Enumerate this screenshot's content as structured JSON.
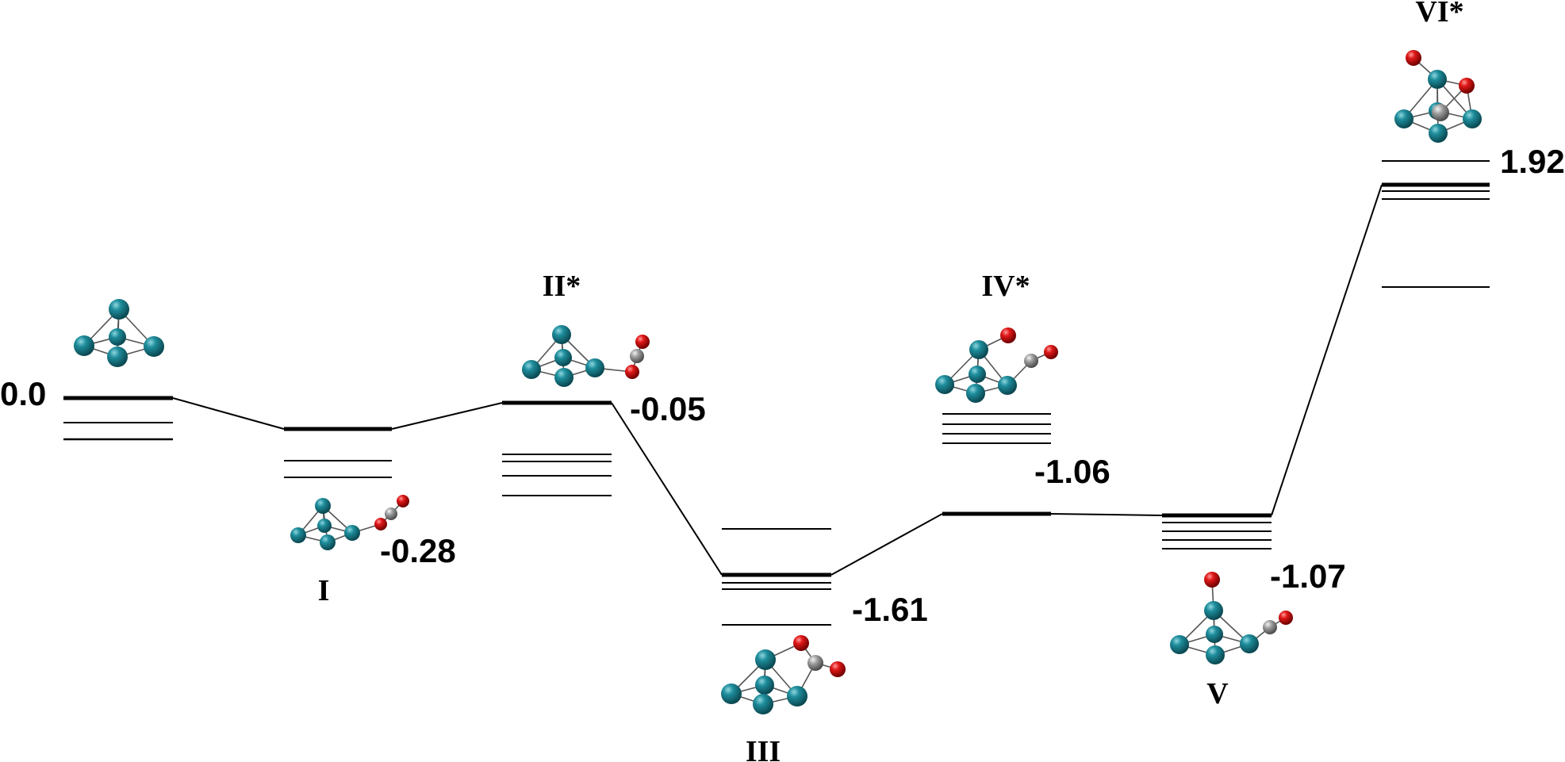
{
  "states": [
    {
      "id": "s0",
      "label": "",
      "energy": "0.0"
    },
    {
      "id": "s1",
      "label": "I",
      "energy": "-0.28"
    },
    {
      "id": "s2",
      "label": "II*",
      "energy": "-0.05"
    },
    {
      "id": "s3",
      "label": "III",
      "energy": "-1.61"
    },
    {
      "id": "s4",
      "label": "IV*",
      "energy": "-1.06"
    },
    {
      "id": "s5",
      "label": "V",
      "energy": "-1.07"
    },
    {
      "id": "s6",
      "label": "VI*",
      "energy": "1.92"
    }
  ],
  "colors": {
    "rh_atom": "#1a7f8e",
    "o_atom": "#d21414",
    "c_atom": "#9a9a9a",
    "bond": "#555555",
    "level": "#000000"
  }
}
